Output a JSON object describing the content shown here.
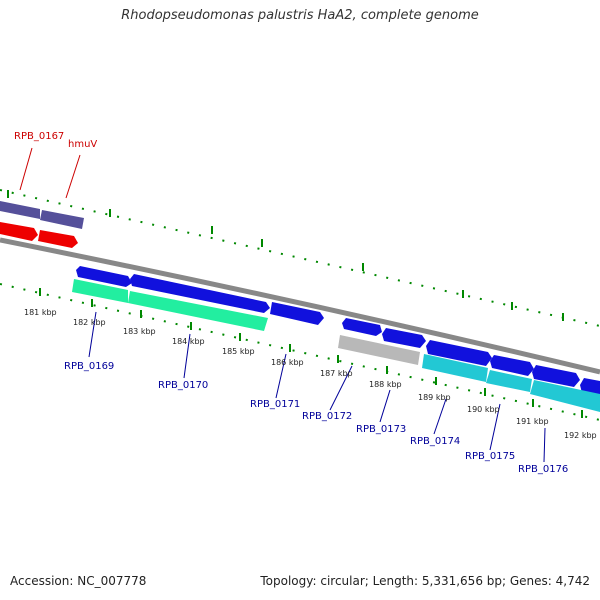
{
  "title": "Rhodopseudomonas palustris HaA2, complete genome",
  "footer": {
    "accession": "Accession: NC_007778",
    "info": "Topology: circular; Length: 5,331,656 bp; Genes: 4,742"
  },
  "colors": {
    "top_strand_gene": "#55509a",
    "top_strand_cds": "#ee0000",
    "backbone": "#888888",
    "bottom_cds": "#1111dd",
    "bottom_gene_green": "#22eea0",
    "bottom_gene_gray": "#b8b8b8",
    "bottom_gene_cyan": "#22c8d4",
    "ticks": "#008800",
    "top_label": "#cc0000",
    "bottom_label": "#000099"
  },
  "top_labels": [
    "RPB_0167",
    "hmuV"
  ],
  "bottom_labels": [
    "RPB_0169",
    "RPB_0170",
    "RPB_0171",
    "RPB_0172",
    "RPB_0173",
    "RPB_0174",
    "RPB_0175",
    "RPB_0176"
  ],
  "kbp_labels": [
    "181 kbp",
    "182 kbp",
    "183 kbp",
    "184 kbp",
    "185 kbp",
    "186 kbp",
    "187 kbp",
    "188 kbp",
    "189 kbp",
    "190 kbp",
    "191 kbp",
    "192 kbp"
  ]
}
